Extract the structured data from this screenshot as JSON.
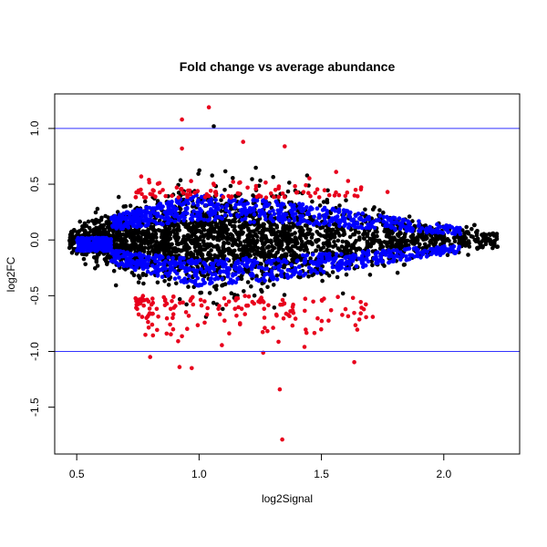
{
  "chart_data": {
    "type": "scatter",
    "title": "Fold change vs average abundance",
    "xlabel": "log2Signal",
    "ylabel": "log2FC",
    "xlim": [
      0.41,
      2.31
    ],
    "ylim": [
      -1.92,
      1.31
    ],
    "x_ticks": [
      "0.5",
      "1.0",
      "1.5",
      "2.0"
    ],
    "y_ticks": [
      "-1.5",
      "-1.0",
      "-0.5",
      "0.0",
      "0.5",
      "1.0"
    ],
    "reference_lines_y": [
      1.0,
      -1.0
    ],
    "grid": false,
    "legend": "none",
    "colors": {
      "background_points": "#000000",
      "significant": "#0000ff",
      "high_fold_change": "#e8001c",
      "reference_line": "#3333ff"
    },
    "outliers": [
      {
        "x": 1.04,
        "y": 1.19
      },
      {
        "x": 0.93,
        "y": 1.08
      },
      {
        "x": 1.06,
        "y": 1.02
      },
      {
        "x": 1.18,
        "y": 0.88
      },
      {
        "x": 1.35,
        "y": 0.84
      },
      {
        "x": 0.93,
        "y": 0.82
      },
      {
        "x": 1.56,
        "y": 0.61
      },
      {
        "x": 1.77,
        "y": 0.43
      },
      {
        "x": 1.33,
        "y": -1.34
      },
      {
        "x": 1.34,
        "y": -1.79
      },
      {
        "x": 0.97,
        "y": -1.15
      },
      {
        "x": 0.92,
        "y": -1.14
      },
      {
        "x": 0.8,
        "y": -1.05
      },
      {
        "x": 1.71,
        "y": -0.69
      }
    ]
  }
}
